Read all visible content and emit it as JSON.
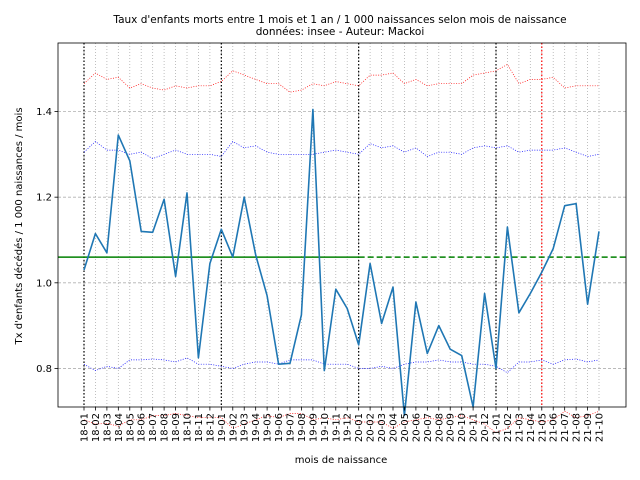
{
  "chart_data": {
    "type": "line",
    "title": "Taux d'enfants morts entre 1 mois et 1 an / 1 000 naissances selon mois de naissance",
    "subtitle": "données: insee - Auteur: Mackoi",
    "xlabel": "mois de naissance",
    "ylabel": "Tx d'enfants décédés / 1 000 naissances / mois",
    "ylim": [
      0.71,
      1.56
    ],
    "yticks": [
      0.8,
      1.0,
      1.2,
      1.4
    ],
    "ytick_labels": [
      "0.8",
      "1.0",
      "1.2",
      "1.4"
    ],
    "grid": true,
    "categories": [
      "18-01",
      "18-02",
      "18-03",
      "18-04",
      "18-05",
      "18-06",
      "18-07",
      "18-08",
      "18-09",
      "18-10",
      "18-11",
      "18-12",
      "19-01",
      "19-02",
      "19-03",
      "19-04",
      "19-05",
      "19-06",
      "19-07",
      "19-08",
      "19-09",
      "19-10",
      "19-11",
      "19-12",
      "20-01",
      "20-02",
      "20-03",
      "20-04",
      "20-05",
      "20-06",
      "20-07",
      "20-08",
      "20-09",
      "20-10",
      "20-11",
      "20-12",
      "21-01",
      "21-02",
      "21-03",
      "21-04",
      "21-05",
      "21-06",
      "21-07",
      "21-08",
      "21-09",
      "21-10"
    ],
    "series": [
      {
        "kind": "main",
        "color": "#1f77b4",
        "values": [
          1.03,
          1.115,
          1.07,
          1.345,
          1.285,
          1.12,
          1.118,
          1.195,
          1.015,
          1.21,
          0.825,
          1.045,
          1.125,
          1.06,
          1.2,
          1.065,
          0.97,
          0.81,
          0.812,
          0.925,
          1.405,
          0.795,
          0.985,
          0.94,
          0.855,
          1.045,
          0.905,
          0.99,
          0.69,
          0.955,
          0.835,
          0.9,
          0.845,
          0.83,
          0.71,
          0.975,
          0.8,
          1.13,
          0.93,
          0.975,
          1.025,
          1.08,
          1.18,
          1.185,
          0.95,
          1.12
        ]
      },
      {
        "kind": "band-blue-upper",
        "color": "#0000ff",
        "values": [
          1.305,
          1.33,
          1.31,
          1.31,
          1.3,
          1.305,
          1.29,
          1.3,
          1.31,
          1.3,
          1.3,
          1.3,
          1.295,
          1.33,
          1.315,
          1.32,
          1.305,
          1.3,
          1.3,
          1.3,
          1.3,
          1.305,
          1.31,
          1.305,
          1.3,
          1.325,
          1.315,
          1.32,
          1.305,
          1.315,
          1.295,
          1.305,
          1.305,
          1.3,
          1.315,
          1.32,
          1.315,
          1.32,
          1.305,
          1.31,
          1.31,
          1.31,
          1.315,
          1.305,
          1.295,
          1.3
        ]
      },
      {
        "kind": "band-blue-lower",
        "color": "#0000ff",
        "values": [
          0.81,
          0.795,
          0.805,
          0.8,
          0.82,
          0.82,
          0.822,
          0.82,
          0.815,
          0.825,
          0.81,
          0.81,
          0.805,
          0.8,
          0.81,
          0.815,
          0.815,
          0.81,
          0.82,
          0.82,
          0.82,
          0.81,
          0.81,
          0.81,
          0.8,
          0.8,
          0.805,
          0.8,
          0.81,
          0.815,
          0.815,
          0.82,
          0.815,
          0.815,
          0.81,
          0.81,
          0.805,
          0.79,
          0.815,
          0.815,
          0.82,
          0.81,
          0.82,
          0.822,
          0.815,
          0.82
        ]
      },
      {
        "kind": "band-red-upper",
        "color": "#ff0000",
        "values": [
          1.465,
          1.49,
          1.475,
          1.48,
          1.455,
          1.465,
          1.455,
          1.45,
          1.46,
          1.455,
          1.46,
          1.46,
          1.47,
          1.495,
          1.485,
          1.475,
          1.465,
          1.465,
          1.445,
          1.45,
          1.465,
          1.46,
          1.47,
          1.465,
          1.46,
          1.485,
          1.485,
          1.49,
          1.465,
          1.475,
          1.46,
          1.465,
          1.465,
          1.465,
          1.485,
          1.49,
          1.495,
          1.51,
          1.465,
          1.475,
          1.475,
          1.48,
          1.455,
          1.46,
          1.46,
          1.46
        ]
      },
      {
        "kind": "band-red-lower",
        "color": "#ff0000",
        "values": [
          0.68,
          0.67,
          0.672,
          0.665,
          0.68,
          0.68,
          0.69,
          0.69,
          0.695,
          0.69,
          0.685,
          0.685,
          0.685,
          0.66,
          0.67,
          0.68,
          0.69,
          0.685,
          0.695,
          0.695,
          0.68,
          0.685,
          0.68,
          0.685,
          0.675,
          0.675,
          0.675,
          0.66,
          0.675,
          0.68,
          0.685,
          0.68,
          0.685,
          0.69,
          0.68,
          0.67,
          0.65,
          0.66,
          0.685,
          0.68,
          0.675,
          0.68,
          0.7,
          0.685,
          0.69,
          0.7
        ]
      }
    ],
    "reference_line": {
      "value": 1.06,
      "color": "#008000",
      "solid_until_index": 24
    },
    "year_markers": [
      {
        "index": 0,
        "color": "#000000"
      },
      {
        "index": 12,
        "color": "#000000"
      },
      {
        "index": 24,
        "color": "#000000"
      },
      {
        "index": 36,
        "color": "#000000"
      },
      {
        "index": 40,
        "color": "#ff0000"
      }
    ]
  }
}
